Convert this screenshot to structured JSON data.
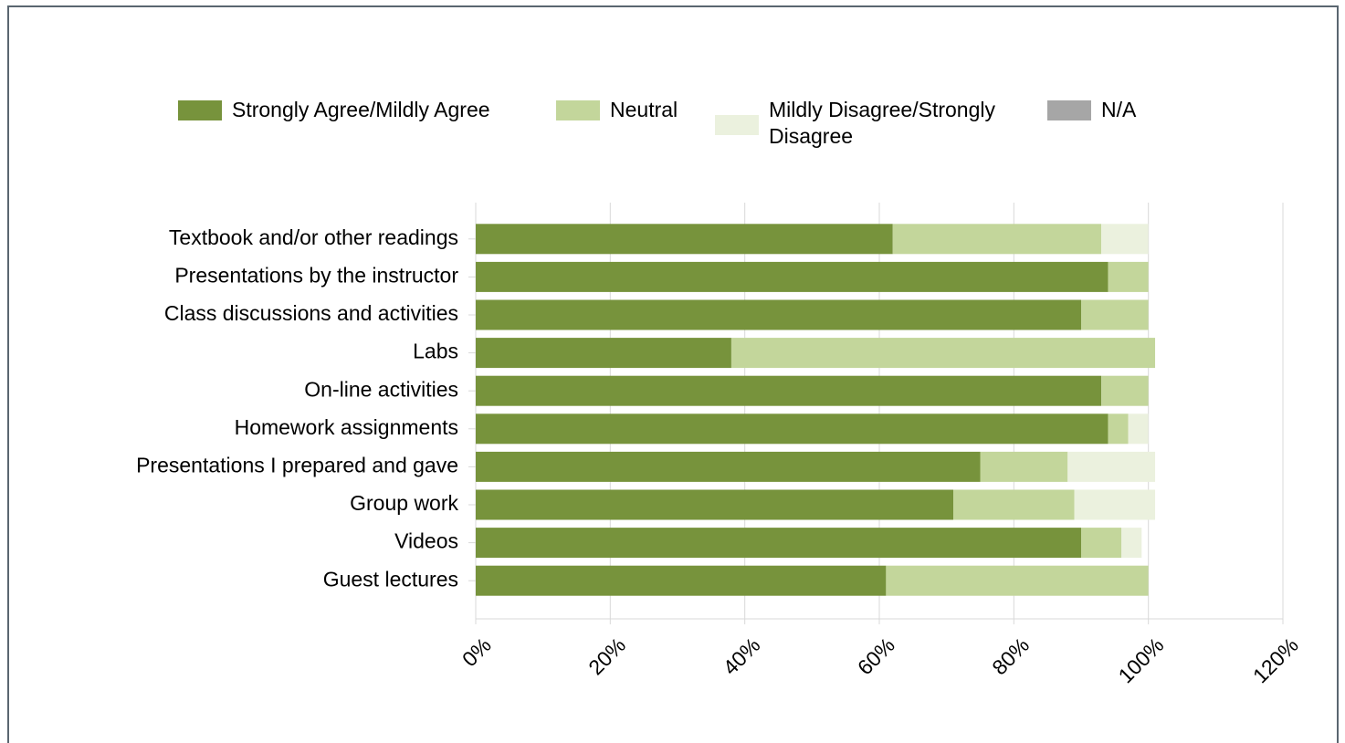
{
  "chart_data": {
    "type": "stacked-bar-horizontal",
    "categories": [
      "Textbook and/or other readings",
      "Presentations by the instructor",
      "Class discussions and activities",
      "Labs",
      "On-line activities",
      "Homework assignments",
      "Presentations I prepared and gave",
      "Group work",
      "Videos",
      "Guest lectures"
    ],
    "series": [
      {
        "name": "Strongly Agree/Mildly Agree",
        "color": "#77933c",
        "values": [
          62,
          94,
          90,
          38,
          93,
          94,
          75,
          71,
          90,
          61
        ]
      },
      {
        "name": "Neutral",
        "color": "#c3d69b",
        "values": [
          31,
          6,
          10,
          63,
          7,
          3,
          13,
          18,
          6,
          39
        ]
      },
      {
        "name": "Mildly Disagree/Strongly Disagree",
        "color": "#ebf1de",
        "values": [
          7,
          0,
          0,
          0,
          0,
          3,
          13,
          12,
          3,
          0
        ]
      },
      {
        "name": "N/A",
        "color": "#a6a6a6",
        "values": [
          0,
          0,
          0,
          0,
          0,
          0,
          0,
          0,
          0,
          0
        ]
      }
    ],
    "xlim": [
      0,
      120
    ],
    "xticks": [
      {
        "value": 0,
        "label": "0%"
      },
      {
        "value": 20,
        "label": "20%"
      },
      {
        "value": 40,
        "label": "40%"
      },
      {
        "value": 60,
        "label": "60%"
      },
      {
        "value": 80,
        "label": "80%"
      },
      {
        "value": 100,
        "label": "100%"
      },
      {
        "value": 120,
        "label": "120%"
      }
    ],
    "grid": true,
    "legend": "top"
  }
}
